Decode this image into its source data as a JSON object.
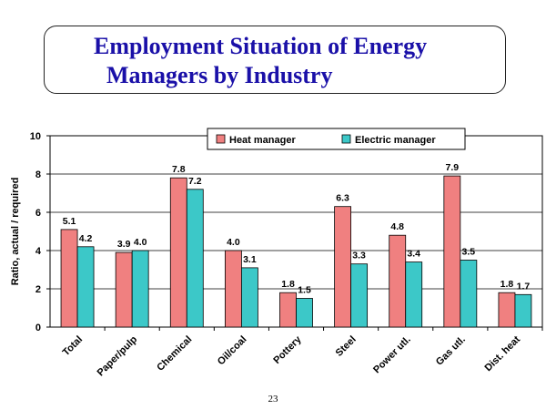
{
  "slide": {
    "title_line1": "Employment Situation of Energy",
    "title_line2": "Managers by Industry",
    "page_number": "23"
  },
  "chart_data": {
    "type": "bar",
    "title": "",
    "xlabel": "",
    "ylabel": "Ratio, actual / required",
    "ylim": [
      0,
      10
    ],
    "yticks": [
      0,
      2,
      4,
      6,
      8,
      10
    ],
    "grid": true,
    "legend_position": "top-center",
    "categories": [
      "Total",
      "Paper/pulp",
      "Chemical",
      "Oil/coal",
      "Pottery",
      "Steel",
      "Power utl.",
      "Gas utl.",
      "Dist. heat"
    ],
    "series": [
      {
        "name": "Heat manager",
        "color": "#f08080",
        "values": [
          5.1,
          3.9,
          7.8,
          4.0,
          1.8,
          6.3,
          4.8,
          7.9,
          1.8
        ]
      },
      {
        "name": "Electric manager",
        "color": "#3cc8c8",
        "values": [
          4.2,
          4.0,
          7.2,
          3.1,
          1.5,
          3.3,
          3.4,
          3.5,
          1.7
        ]
      }
    ]
  }
}
